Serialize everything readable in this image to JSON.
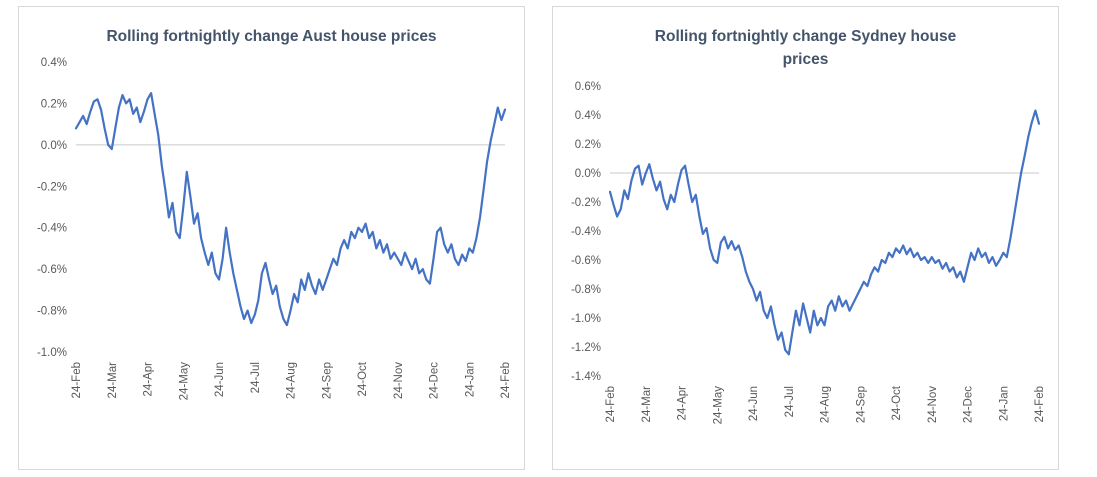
{
  "page": {
    "background": "#ffffff",
    "card_border_color": "#d8d8d8"
  },
  "chart_data": [
    {
      "type": "line",
      "title": "Rolling fortnightly change Aust house prices",
      "xlabel": "",
      "ylabel": "",
      "legend": "none",
      "gridlines": "zero-line-only",
      "line_color": "#4472c4",
      "axis_color": "#c9c9c9",
      "tick_label_color": "#595959",
      "ylim": [
        -1.0,
        0.4
      ],
      "y_ticks": [
        0.4,
        0.2,
        0.0,
        -0.2,
        -0.4,
        -0.6,
        -0.8,
        -1.0
      ],
      "categories": [
        "24-Feb",
        "24-Mar",
        "24-Apr",
        "24-May",
        "24-Jun",
        "24-Jul",
        "24-Aug",
        "24-Sep",
        "24-Oct",
        "24-Nov",
        "24-Dec",
        "24-Jan",
        "24-Feb"
      ],
      "values": [
        0.08,
        0.11,
        0.14,
        0.1,
        0.16,
        0.21,
        0.22,
        0.17,
        0.08,
        0.0,
        -0.02,
        0.08,
        0.18,
        0.24,
        0.2,
        0.22,
        0.15,
        0.18,
        0.11,
        0.16,
        0.22,
        0.25,
        0.15,
        0.05,
        -0.1,
        -0.22,
        -0.35,
        -0.28,
        -0.42,
        -0.45,
        -0.3,
        -0.13,
        -0.25,
        -0.38,
        -0.33,
        -0.45,
        -0.52,
        -0.58,
        -0.52,
        -0.62,
        -0.65,
        -0.55,
        -0.4,
        -0.52,
        -0.62,
        -0.7,
        -0.78,
        -0.84,
        -0.8,
        -0.86,
        -0.82,
        -0.75,
        -0.62,
        -0.57,
        -0.65,
        -0.72,
        -0.68,
        -0.78,
        -0.84,
        -0.87,
        -0.8,
        -0.72,
        -0.76,
        -0.65,
        -0.7,
        -0.62,
        -0.68,
        -0.72,
        -0.65,
        -0.7,
        -0.65,
        -0.6,
        -0.55,
        -0.58,
        -0.5,
        -0.46,
        -0.5,
        -0.42,
        -0.45,
        -0.4,
        -0.42,
        -0.38,
        -0.45,
        -0.42,
        -0.5,
        -0.46,
        -0.52,
        -0.48,
        -0.55,
        -0.52,
        -0.55,
        -0.58,
        -0.52,
        -0.56,
        -0.6,
        -0.55,
        -0.62,
        -0.6,
        -0.65,
        -0.67,
        -0.55,
        -0.42,
        -0.4,
        -0.48,
        -0.52,
        -0.48,
        -0.55,
        -0.58,
        -0.53,
        -0.56,
        -0.5,
        -0.52,
        -0.45,
        -0.35,
        -0.22,
        -0.08,
        0.02,
        0.1,
        0.18,
        0.12,
        0.17
      ]
    },
    {
      "type": "line",
      "title": "Rolling fortnightly change Sydney house prices",
      "xlabel": "",
      "ylabel": "",
      "legend": "none",
      "gridlines": "zero-line-only",
      "line_color": "#4472c4",
      "axis_color": "#c9c9c9",
      "tick_label_color": "#595959",
      "ylim": [
        -1.4,
        0.6
      ],
      "y_ticks": [
        0.6,
        0.4,
        0.2,
        0.0,
        -0.2,
        -0.4,
        -0.6,
        -0.8,
        -1.0,
        -1.2,
        -1.4
      ],
      "categories": [
        "24-Feb",
        "24-Mar",
        "24-Apr",
        "24-May",
        "24-Jun",
        "24-Jul",
        "24-Aug",
        "24-Sep",
        "24-Oct",
        "24-Nov",
        "24-Dec",
        "24-Jan",
        "24-Feb"
      ],
      "values": [
        -0.13,
        -0.22,
        -0.3,
        -0.25,
        -0.12,
        -0.18,
        -0.05,
        0.03,
        0.05,
        -0.08,
        0.0,
        0.06,
        -0.04,
        -0.12,
        -0.06,
        -0.18,
        -0.25,
        -0.15,
        -0.2,
        -0.08,
        0.02,
        0.05,
        -0.08,
        -0.2,
        -0.15,
        -0.3,
        -0.42,
        -0.38,
        -0.52,
        -0.6,
        -0.62,
        -0.48,
        -0.44,
        -0.52,
        -0.47,
        -0.53,
        -0.5,
        -0.58,
        -0.68,
        -0.75,
        -0.8,
        -0.88,
        -0.82,
        -0.95,
        -1.0,
        -0.92,
        -1.05,
        -1.15,
        -1.1,
        -1.22,
        -1.25,
        -1.1,
        -0.95,
        -1.05,
        -0.9,
        -1.0,
        -1.1,
        -0.95,
        -1.05,
        -1.0,
        -1.05,
        -0.92,
        -0.88,
        -0.95,
        -0.85,
        -0.92,
        -0.88,
        -0.95,
        -0.9,
        -0.85,
        -0.8,
        -0.75,
        -0.78,
        -0.7,
        -0.65,
        -0.68,
        -0.6,
        -0.62,
        -0.55,
        -0.58,
        -0.52,
        -0.55,
        -0.5,
        -0.56,
        -0.52,
        -0.58,
        -0.55,
        -0.6,
        -0.58,
        -0.62,
        -0.58,
        -0.62,
        -0.6,
        -0.66,
        -0.62,
        -0.68,
        -0.65,
        -0.72,
        -0.68,
        -0.75,
        -0.65,
        -0.55,
        -0.6,
        -0.52,
        -0.58,
        -0.55,
        -0.62,
        -0.58,
        -0.64,
        -0.6,
        -0.55,
        -0.58,
        -0.45,
        -0.3,
        -0.15,
        0.0,
        0.12,
        0.25,
        0.35,
        0.43,
        0.34
      ]
    }
  ]
}
